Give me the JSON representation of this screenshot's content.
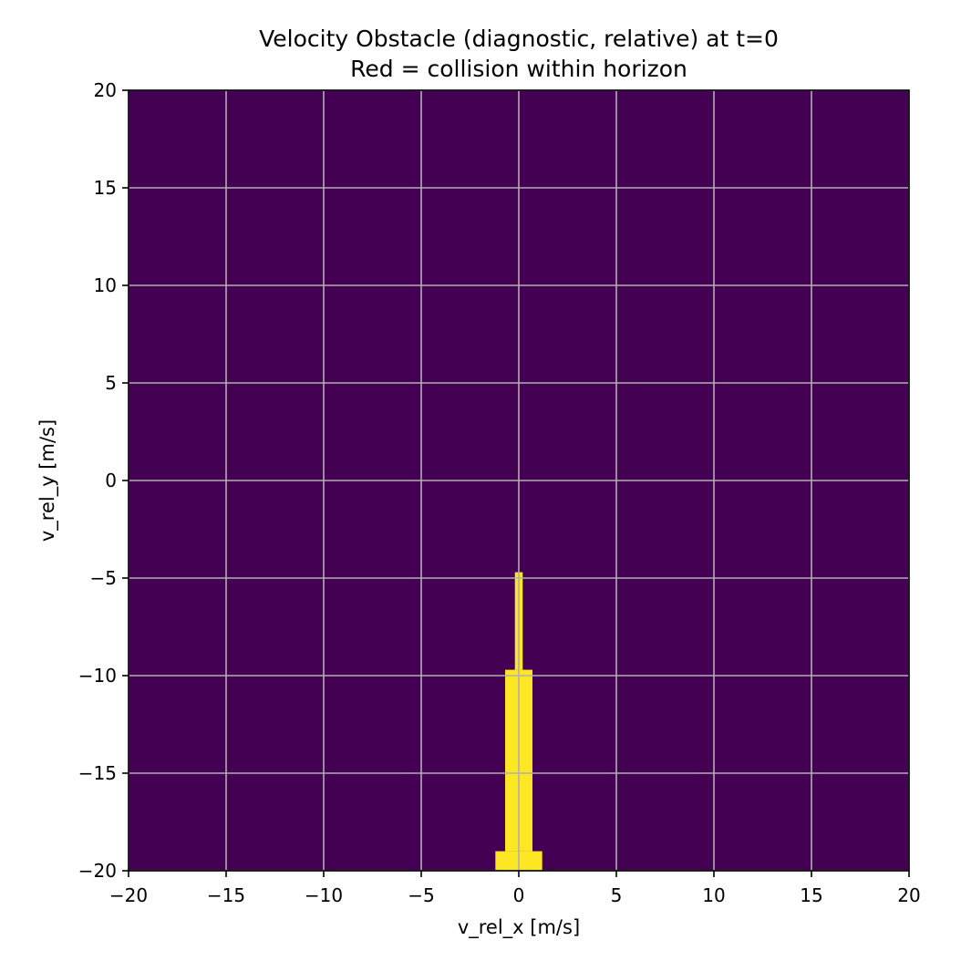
{
  "chart_data": {
    "type": "heatmap",
    "title": "Velocity Obstacle (diagnostic, relative) at t=0",
    "subtitle": "Red = collision within horizon",
    "xlabel": "v_rel_x [m/s]",
    "ylabel": "v_rel_y [m/s]",
    "xlim": [
      -20,
      20
    ],
    "ylim": [
      -20,
      20
    ],
    "x_ticks": [
      -20,
      -15,
      -10,
      -5,
      0,
      5,
      10,
      15,
      20
    ],
    "y_ticks": [
      -20,
      -15,
      -10,
      -5,
      0,
      5,
      10,
      15,
      20
    ],
    "x_tick_labels": [
      "−20",
      "−15",
      "−10",
      "−5",
      "0",
      "5",
      "10",
      "15",
      "20"
    ],
    "y_tick_labels": [
      "−20",
      "−15",
      "−10",
      "−5",
      "0",
      "5",
      "10",
      "15",
      "20"
    ],
    "grid": true,
    "colormap": "viridis",
    "colors": {
      "no_collision": "#440154",
      "collision": "#fde725",
      "grid": "#b0b0b0"
    },
    "collision_regions": [
      {
        "x": [
          -1.2,
          1.2
        ],
        "y": [
          -20,
          -19.0
        ]
      },
      {
        "x": [
          -0.7,
          0.7
        ],
        "y": [
          -19.0,
          -9.7
        ]
      },
      {
        "x": [
          -0.2,
          0.2
        ],
        "y": [
          -9.7,
          -4.7
        ]
      }
    ]
  }
}
